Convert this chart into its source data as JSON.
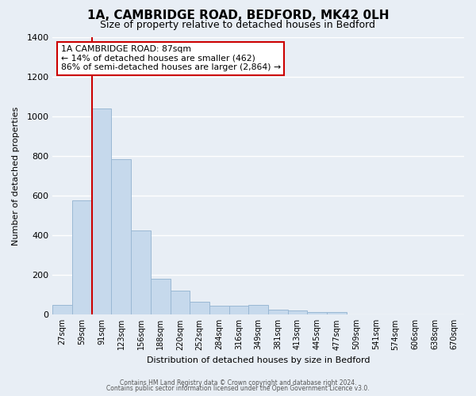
{
  "title": "1A, CAMBRIDGE ROAD, BEDFORD, MK42 0LH",
  "subtitle": "Size of property relative to detached houses in Bedford",
  "xlabel": "Distribution of detached houses by size in Bedford",
  "ylabel": "Number of detached properties",
  "bar_labels": [
    "27sqm",
    "59sqm",
    "91sqm",
    "123sqm",
    "156sqm",
    "188sqm",
    "220sqm",
    "252sqm",
    "284sqm",
    "316sqm",
    "349sqm",
    "381sqm",
    "413sqm",
    "445sqm",
    "477sqm",
    "509sqm",
    "541sqm",
    "574sqm",
    "606sqm",
    "638sqm",
    "670sqm"
  ],
  "bar_values": [
    50,
    575,
    1040,
    785,
    425,
    180,
    120,
    65,
    45,
    45,
    50,
    25,
    20,
    12,
    12,
    0,
    0,
    0,
    0,
    0,
    0
  ],
  "bar_color": "#c6d9ec",
  "bar_edge_color": "#9ab8d4",
  "ylim": [
    0,
    1400
  ],
  "yticks": [
    0,
    200,
    400,
    600,
    800,
    1000,
    1200,
    1400
  ],
  "vline_x": 1.5,
  "vline_color": "#cc0000",
  "annotation_title": "1A CAMBRIDGE ROAD: 87sqm",
  "annotation_line1": "← 14% of detached houses are smaller (462)",
  "annotation_line2": "86% of semi-detached houses are larger (2,864) →",
  "annotation_box_facecolor": "#ffffff",
  "annotation_box_edgecolor": "#cc0000",
  "footer_line1": "Contains HM Land Registry data © Crown copyright and database right 2024.",
  "footer_line2": "Contains public sector information licensed under the Open Government Licence v3.0.",
  "bg_color": "#e8eef5",
  "plot_bg_color": "#e8eef5",
  "grid_color": "#ffffff",
  "title_fontsize": 11,
  "subtitle_fontsize": 9,
  "ylabel_fontsize": 8,
  "xlabel_fontsize": 8,
  "ytick_fontsize": 8,
  "xtick_fontsize": 7
}
